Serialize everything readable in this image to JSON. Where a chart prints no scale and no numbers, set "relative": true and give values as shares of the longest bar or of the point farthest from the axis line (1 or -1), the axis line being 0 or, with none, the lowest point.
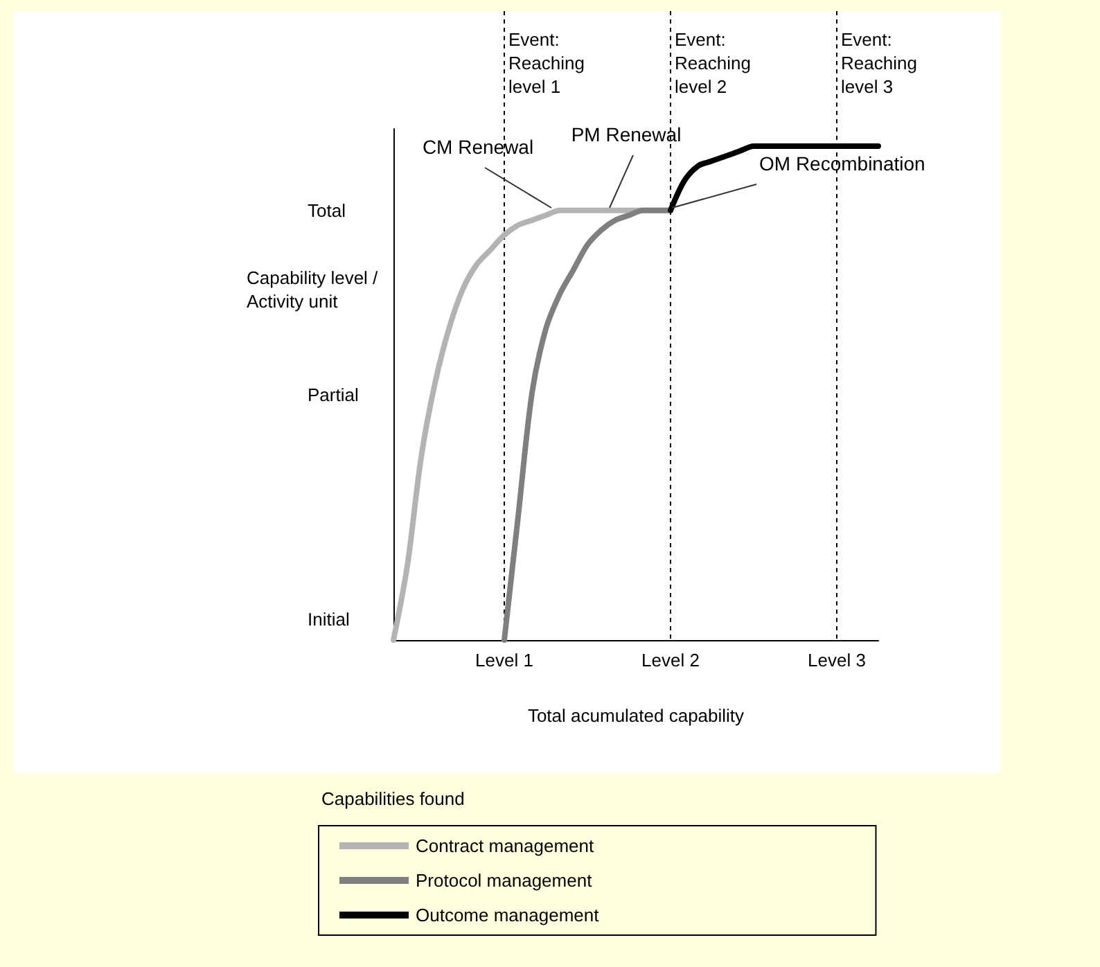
{
  "chart_data": {
    "type": "line",
    "relative": true,
    "xlabel": "Total acumulated capability",
    "ylabel": "Capability level /Activity unit",
    "legend_title": "Capabilities found",
    "legend": "bottom",
    "grid": false,
    "marker": "none",
    "line_style": "solid",
    "categories": [
      null,
      null,
      null,
      null,
      null,
      null,
      null,
      null,
      "Level 1",
      null,
      null,
      null,
      null,
      null,
      null,
      null,
      null,
      null,
      null,
      null,
      "Level 2",
      null,
      null,
      null,
      null,
      null,
      null,
      null,
      null,
      null,
      null,
      null,
      "Level 3",
      null,
      null,
      null
    ],
    "series": [
      {
        "name": "Contract management",
        "color": "#b3b3b3",
        "values": [
          0,
          0.15,
          0.37,
          0.52,
          0.63,
          0.71,
          0.76,
          0.79,
          0.82,
          0.84,
          0.85,
          0.86,
          0.87,
          0.87,
          0.87,
          0.87,
          0.87,
          0.87,
          0.87,
          0.87,
          0.87,
          null,
          null,
          null,
          null,
          null,
          null,
          null,
          null,
          null,
          null,
          null,
          null,
          null,
          null,
          null
        ]
      },
      {
        "name": "Protocol management",
        "color": "#7f7f7f",
        "values": [
          null,
          null,
          null,
          null,
          null,
          null,
          null,
          null,
          0,
          0.25,
          0.5,
          0.63,
          0.7,
          0.75,
          0.8,
          0.83,
          0.85,
          0.86,
          0.87,
          0.87,
          0.87,
          null,
          null,
          null,
          null,
          null,
          null,
          null,
          null,
          null,
          null,
          null,
          null,
          null,
          null,
          null
        ]
      },
      {
        "name": "Outcome management",
        "color": "#000000",
        "values": [
          null,
          null,
          null,
          null,
          null,
          null,
          null,
          null,
          null,
          null,
          null,
          null,
          null,
          null,
          null,
          null,
          null,
          null,
          null,
          null,
          0.87,
          0.93,
          0.96,
          0.97,
          0.98,
          0.99,
          1,
          1,
          1,
          1,
          1,
          1,
          1,
          1,
          1,
          1
        ]
      }
    ],
    "ref_lines": [
      {
        "axis": "x",
        "value": "Level 1",
        "label": "Event: Reaching level 1",
        "line_style": "dashed"
      },
      {
        "axis": "x",
        "value": "Level 2",
        "label": "Event: Reaching level 2",
        "line_style": "dashed"
      },
      {
        "axis": "x",
        "value": "Level 3",
        "label": "Event: Reaching level 3",
        "line_style": "dashed"
      }
    ],
    "annotations": [
      "Total",
      "Partial",
      "Initial",
      "CM Renewal",
      "PM Renewal",
      "OM Recombination"
    ]
  }
}
